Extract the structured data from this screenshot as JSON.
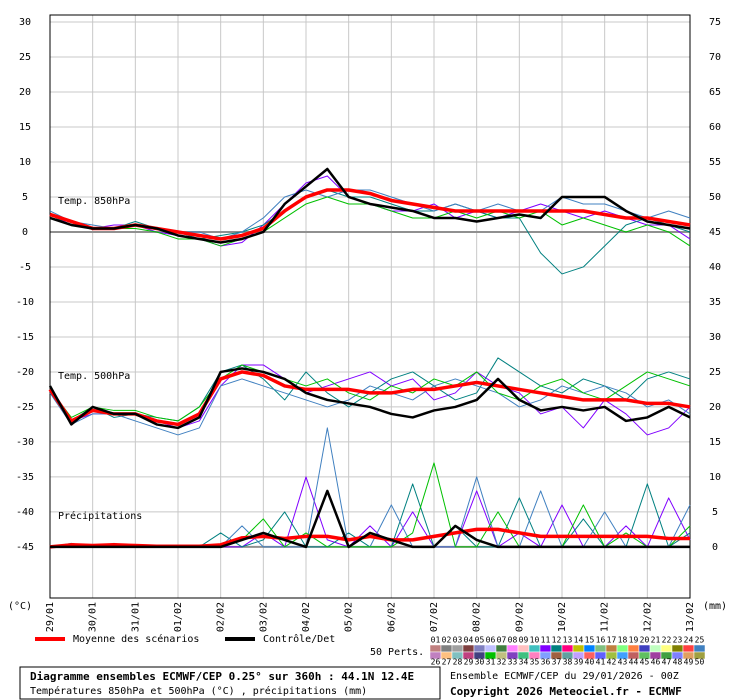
{
  "chart_data": {
    "type": "line",
    "x": [
      0,
      12,
      24,
      36,
      48,
      60,
      72,
      84,
      96,
      108,
      120,
      132,
      144,
      156,
      168,
      180,
      192,
      204,
      216,
      228,
      240,
      252,
      264,
      276,
      288,
      300,
      312,
      324,
      336,
      348,
      360
    ],
    "xlim": [
      0,
      360
    ],
    "xticks": [
      {
        "value": 0,
        "label": "29/01"
      },
      {
        "value": 24,
        "label": "30/01"
      },
      {
        "value": 48,
        "label": "31/01"
      },
      {
        "value": 72,
        "label": "01/02"
      },
      {
        "value": 96,
        "label": "02/02"
      },
      {
        "value": 120,
        "label": "03/02"
      },
      {
        "value": 144,
        "label": "04/02"
      },
      {
        "value": 168,
        "label": "05/02"
      },
      {
        "value": 192,
        "label": "06/02"
      },
      {
        "value": 216,
        "label": "07/02"
      },
      {
        "value": 240,
        "label": "08/02"
      },
      {
        "value": 264,
        "label": "09/02"
      },
      {
        "value": 288,
        "label": "10/02"
      },
      {
        "value": 312,
        "label": "11/02"
      },
      {
        "value": 336,
        "label": "12/02"
      },
      {
        "value": 360,
        "label": "13/02"
      }
    ],
    "ylim": [
      -52.3,
      31
    ],
    "yticks": [
      30,
      25,
      20,
      15,
      10,
      5,
      0,
      -5,
      -10,
      -15,
      -20,
      -25,
      -30,
      -35,
      -40,
      -45
    ],
    "y2lim": [
      -7.3,
      76
    ],
    "y2ticks": [
      75,
      70,
      65,
      60,
      55,
      50,
      45,
      40,
      35,
      30,
      25,
      20,
      15,
      10,
      5,
      0
    ],
    "y_unit": "(°C)",
    "y2_unit": "(mm)",
    "grid": true,
    "panel_labels": [
      "Temp. 850hPa",
      "Temp. 500hPa",
      "Précipitations"
    ],
    "series": [
      {
        "name": "Moyenne des scénarios",
        "color": "#ff0000",
        "values": [
          2.5,
          1.5,
          0.5,
          0.5,
          1,
          0.5,
          0,
          -0.5,
          -1,
          -0.5,
          0.5,
          3,
          5,
          6,
          6,
          5.5,
          4.5,
          4,
          3.5,
          3,
          3,
          3,
          3,
          3,
          3,
          3,
          2.5,
          2,
          2,
          1.5,
          1
        ],
        "values_500": [
          -22.5,
          -27,
          -25.5,
          -26,
          -26,
          -27,
          -27.5,
          -26,
          -21,
          -20,
          -20.5,
          -22,
          -22.5,
          -22.5,
          -22.5,
          -23,
          -23,
          -22.5,
          -22.5,
          -22,
          -21.5,
          -22,
          -22.5,
          -23,
          -23.5,
          -24,
          -24,
          -24,
          -24.5,
          -24.5,
          -25
        ],
        "values_precip": [
          0,
          0.3,
          0.2,
          0.3,
          0.2,
          0.1,
          0.1,
          0.1,
          0.3,
          1.3,
          1.5,
          1.2,
          1.5,
          1.5,
          1,
          1.5,
          1,
          1,
          1.5,
          2,
          2.5,
          2.5,
          2,
          1.5,
          1.5,
          1.5,
          1.5,
          1.5,
          1.5,
          1.2,
          1.2
        ]
      },
      {
        "name": "Contrôle/Det",
        "color": "#000000",
        "values": [
          2,
          1,
          0.5,
          0.5,
          1,
          0.5,
          -0.5,
          -1,
          -1.5,
          -1,
          0,
          4,
          6.5,
          9,
          5,
          4,
          3.5,
          3,
          2,
          2,
          1.5,
          2,
          2.5,
          2,
          5,
          5,
          5,
          3,
          1.5,
          1,
          0.5
        ],
        "values_500": [
          -22,
          -27.5,
          -25,
          -26,
          -26,
          -27.5,
          -28,
          -26.5,
          -20,
          -19.5,
          -20,
          -21,
          -23,
          -24,
          -24.5,
          -25,
          -26,
          -26.5,
          -25.5,
          -25,
          -24,
          -21,
          -24,
          -25.5,
          -25,
          -25.5,
          -25,
          -27,
          -26.5,
          -25,
          -26.5
        ],
        "values_precip": [
          0,
          0,
          0,
          0,
          0,
          0,
          0,
          0,
          0,
          1,
          2,
          1,
          0,
          8,
          0,
          2,
          1,
          0,
          0,
          3,
          1,
          0,
          0,
          0,
          0,
          0,
          0,
          0,
          0,
          0,
          0
        ]
      }
    ],
    "perturbations": {
      "label": "50 Perts.",
      "members": [
        {
          "name": "01",
          "color": "#c08080"
        },
        {
          "name": "02",
          "color": "#808080"
        },
        {
          "name": "03",
          "color": "#a0a0a0"
        },
        {
          "name": "04",
          "color": "#804040"
        },
        {
          "name": "05",
          "color": "#8080c0"
        },
        {
          "name": "06",
          "color": "#c0c0ff"
        },
        {
          "name": "07",
          "color": "#408040"
        },
        {
          "name": "08",
          "color": "#ff80ff"
        },
        {
          "name": "09",
          "color": "#ffc0c0"
        },
        {
          "name": "10",
          "color": "#40c0c0"
        },
        {
          "name": "11",
          "color": "#8000ff",
          "values": [
            2.5,
            1,
            0.5,
            1,
            1,
            0,
            -0.5,
            -1,
            -2,
            -1.5,
            1,
            4,
            7,
            8,
            5,
            4,
            3,
            3,
            4,
            2,
            3,
            2,
            3,
            4,
            3,
            2,
            3,
            2,
            1,
            1,
            -1
          ],
          "values_500": [
            -22.5,
            -27,
            -26,
            -26,
            -26,
            -27,
            -28,
            -27,
            -22,
            -19,
            -19,
            -21,
            -23,
            -22,
            -21,
            -20,
            -22,
            -21,
            -24,
            -23,
            -20,
            -22,
            -23,
            -26,
            -25,
            -28,
            -24,
            -26,
            -29,
            -28,
            -25
          ],
          "values_precip": [
            0,
            0,
            0,
            0,
            0,
            0,
            0,
            0,
            0,
            0,
            2,
            0,
            10,
            1,
            0,
            3,
            0,
            5,
            0,
            0,
            8,
            0,
            2,
            0,
            6,
            0,
            0,
            3,
            0,
            7,
            1
          ]
        },
        {
          "name": "12",
          "color": "#008080",
          "values": [
            2,
            1.5,
            0.5,
            0.5,
            1.5,
            0.5,
            0,
            -1,
            -0.5,
            0,
            1,
            3,
            5,
            6,
            5,
            5,
            4,
            3,
            3,
            4,
            3,
            2,
            2,
            -3,
            -6,
            -5,
            -2,
            1,
            2,
            1,
            0
          ],
          "values_500": [
            -22,
            -27,
            -25,
            -26.5,
            -26,
            -26.5,
            -27,
            -25,
            -20,
            -19,
            -21,
            -24,
            -20,
            -23,
            -25,
            -23,
            -21,
            -20,
            -22,
            -24,
            -23,
            -18,
            -20,
            -22,
            -23,
            -21,
            -22,
            -24,
            -21,
            -20,
            -21
          ],
          "values_precip": [
            0,
            0.5,
            0,
            0,
            0,
            0,
            0,
            0,
            2,
            0,
            1,
            5,
            0,
            0,
            2,
            0,
            0,
            9,
            0,
            3,
            0,
            0,
            7,
            0,
            0,
            4,
            0,
            0,
            9,
            0,
            2
          ]
        },
        {
          "name": "13",
          "color": "#ff0080"
        },
        {
          "name": "14",
          "color": "#c0c000"
        },
        {
          "name": "15",
          "color": "#0080ff"
        },
        {
          "name": "16",
          "color": "#80c080"
        },
        {
          "name": "17",
          "color": "#c08040"
        },
        {
          "name": "18",
          "color": "#80ff80"
        },
        {
          "name": "19",
          "color": "#ff8040"
        },
        {
          "name": "20",
          "color": "#4040c0"
        },
        {
          "name": "21",
          "color": "#c0ffc0"
        },
        {
          "name": "22",
          "color": "#ffff80"
        },
        {
          "name": "23",
          "color": "#808000"
        },
        {
          "name": "24",
          "color": "#ff4040"
        },
        {
          "name": "25",
          "color": "#4080c0",
          "values": [
            3,
            1.5,
            1,
            0.5,
            1,
            0.5,
            0,
            0,
            -1,
            0,
            2,
            5,
            6,
            5,
            6,
            6,
            5,
            4,
            3,
            4,
            3,
            4,
            3,
            3,
            5,
            4,
            4,
            3,
            2,
            3,
            2
          ],
          "values_500": [
            -23,
            -27.5,
            -26,
            -26,
            -27,
            -28,
            -29,
            -28,
            -22,
            -21,
            -22,
            -23,
            -24,
            -25,
            -24,
            -22,
            -23,
            -24,
            -22,
            -21,
            -22,
            -23,
            -25,
            -24,
            -22,
            -23,
            -22,
            -23,
            -25,
            -24,
            -26
          ],
          "values_precip": [
            0,
            0,
            0,
            0.5,
            0,
            0,
            0,
            0,
            0,
            3,
            0,
            0,
            0,
            17,
            0,
            0,
            6,
            0,
            0,
            0,
            10,
            0,
            0,
            8,
            0,
            0,
            5,
            0,
            0,
            0,
            6
          ]
        },
        {
          "name": "26",
          "color": "#c080c0"
        },
        {
          "name": "27",
          "color": "#ffc080"
        },
        {
          "name": "28",
          "color": "#80c0c0"
        },
        {
          "name": "29",
          "color": "#c04080"
        },
        {
          "name": "30",
          "color": "#404080"
        },
        {
          "name": "31",
          "color": "#00c000",
          "values": [
            2,
            1,
            0.5,
            0.5,
            0.5,
            0,
            -1,
            -1,
            -2,
            -1,
            0,
            2,
            4,
            5,
            4,
            4,
            3,
            2,
            2,
            3,
            2,
            3,
            2,
            3,
            1,
            2,
            1,
            0,
            1,
            0,
            -2
          ],
          "values_500": [
            -22.5,
            -26.5,
            -25,
            -25.5,
            -25.5,
            -26.5,
            -27,
            -25,
            -21,
            -19,
            -20,
            -21,
            -22,
            -21,
            -23,
            -24,
            -22,
            -23,
            -21,
            -22,
            -20,
            -23,
            -24,
            -22,
            -21,
            -23,
            -24,
            -22,
            -20,
            -21,
            -22
          ],
          "values_precip": [
            0,
            0,
            0,
            0,
            0,
            0,
            0,
            0,
            0,
            1,
            4,
            0,
            2,
            0,
            0,
            0,
            0,
            2,
            12,
            0,
            0,
            5,
            0,
            0,
            0,
            6,
            0,
            2,
            0,
            0,
            3
          ]
        },
        {
          "name": "32",
          "color": "#c0c080"
        },
        {
          "name": "33",
          "color": "#8040c0"
        },
        {
          "name": "34",
          "color": "#40c080"
        },
        {
          "name": "35",
          "color": "#ff80c0"
        },
        {
          "name": "36",
          "color": "#80a0ff"
        },
        {
          "name": "37",
          "color": "#a06040"
        },
        {
          "name": "38",
          "color": "#60a0a0"
        },
        {
          "name": "39",
          "color": "#c0a0ff"
        },
        {
          "name": "40",
          "color": "#ff6060"
        },
        {
          "name": "41",
          "color": "#6060ff"
        },
        {
          "name": "42",
          "color": "#a0c040"
        },
        {
          "name": "43",
          "color": "#40a0ff"
        },
        {
          "name": "44",
          "color": "#c06060"
        },
        {
          "name": "45",
          "color": "#60c060"
        },
        {
          "name": "46",
          "color": "#a040a0"
        },
        {
          "name": "47",
          "color": "#40a040"
        },
        {
          "name": "48",
          "color": "#8080ff"
        },
        {
          "name": "49",
          "color": "#e0a060"
        },
        {
          "name": "50",
          "color": "#a0a040"
        }
      ]
    },
    "footer": {
      "title": "Diagramme ensembles ECMWF/CEP 0.25° sur 360h : 44.1N 12.4E",
      "subtitle": "Températures 850hPa et 500hPa (°C) , précipitations (mm)",
      "run": "Ensemble ECMWF/CEP du 29/01/2026 - 00Z",
      "copyright": "Copyright 2026 Meteociel.fr - ECMWF"
    }
  }
}
